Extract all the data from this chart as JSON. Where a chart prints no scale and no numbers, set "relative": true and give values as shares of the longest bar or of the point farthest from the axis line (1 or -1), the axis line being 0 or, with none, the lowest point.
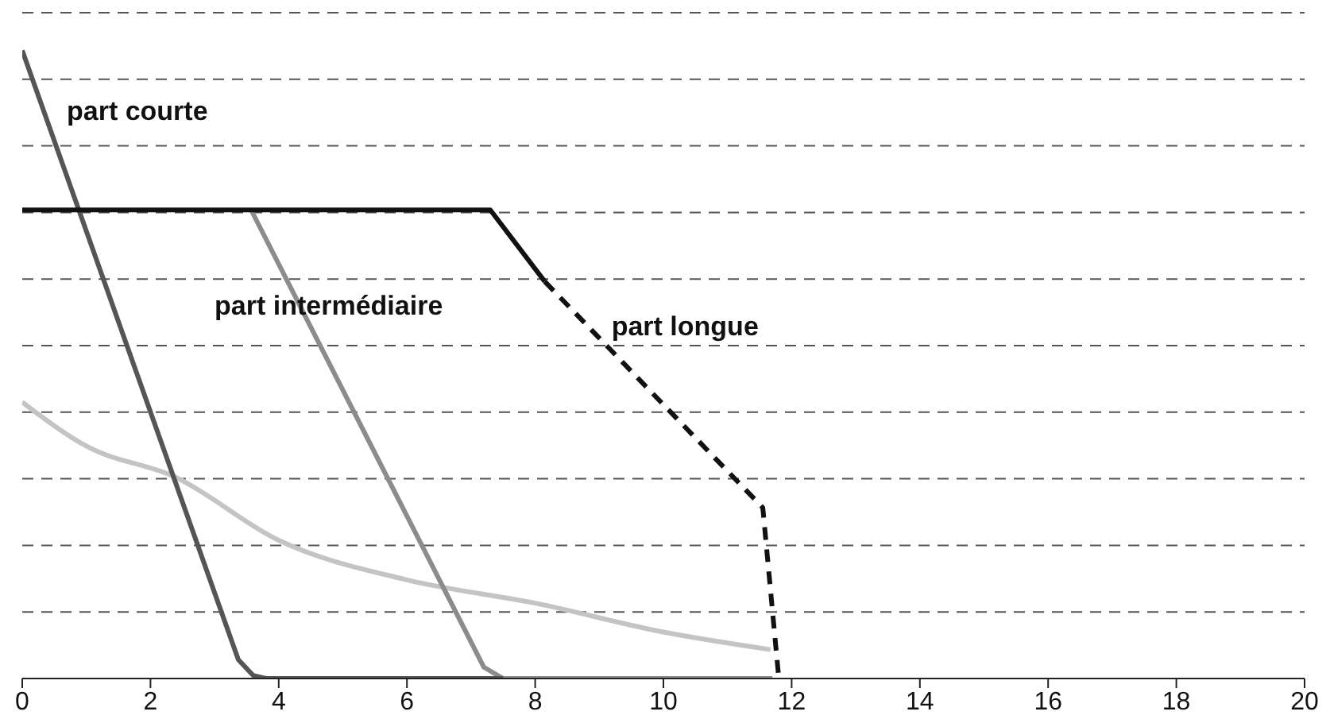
{
  "chart_data": {
    "type": "line",
    "relative": true,
    "xlim": [
      0,
      20
    ],
    "xticks": [
      0,
      2,
      4,
      6,
      8,
      10,
      12,
      14,
      16,
      18,
      20
    ],
    "grid": "y",
    "series": [
      {
        "color": "#c4c4c4",
        "x": [
          0,
          1,
          2.4,
          4,
          6,
          8,
          10,
          11.67
        ],
        "values": [
          0.44,
          0.37,
          0.32,
          0.22,
          0.157,
          0.12,
          0.074,
          0.046
        ]
      },
      {
        "name": "part intermédiaire",
        "color": "#8c8c8c",
        "x": [
          3.57,
          7.2,
          7.5,
          11.7
        ],
        "values": [
          0.746,
          0.018,
          0,
          0
        ]
      },
      {
        "name": "part courte",
        "color": "#555555",
        "x": [
          0,
          3.37,
          3.6,
          3.8,
          7.5
        ],
        "values": [
          1,
          0.03,
          0.005,
          0,
          0
        ]
      },
      {
        "color": "#111111",
        "x": [
          0,
          7.3,
          8.15
        ],
        "values": [
          0.746,
          0.746,
          0.632
        ]
      },
      {
        "name": "part longue",
        "color": "#111111",
        "line_style": "dashed",
        "x": [
          8.15,
          11.55,
          11.8
        ],
        "values": [
          0.632,
          0.272,
          0
        ]
      }
    ]
  }
}
